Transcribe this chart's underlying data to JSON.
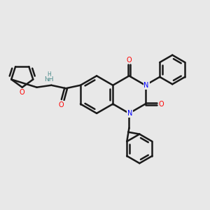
{
  "background_color": "#e8e8e8",
  "bond_color": "#1a1a1a",
  "nitrogen_color": "#0000ff",
  "oxygen_color": "#ff0000",
  "hydrogen_color": "#4a8a8a",
  "bond_width": 1.8,
  "figsize": [
    3.0,
    3.0
  ],
  "dpi": 100,
  "xlim": [
    0,
    10
  ],
  "ylim": [
    0,
    10
  ]
}
